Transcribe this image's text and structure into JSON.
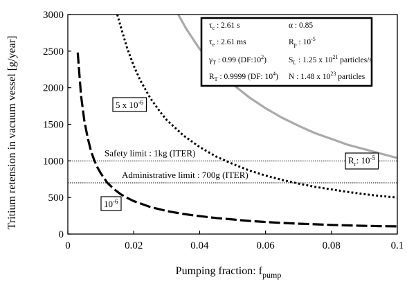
{
  "chart_data": {
    "type": "line",
    "xlabel": "Pumping fraction: f",
    "xlabel_sub": "pump",
    "ylabel": "Tritium retension in vacuum vessel [g/year]",
    "xlim": [
      0,
      0.1
    ],
    "ylim": [
      0,
      3000
    ],
    "x_ticks": [
      {
        "value": 0,
        "label": "0"
      },
      {
        "value": 0.02,
        "label": "0.02"
      },
      {
        "value": 0.04,
        "label": "0.04"
      },
      {
        "value": 0.06,
        "label": "0.06"
      },
      {
        "value": 0.08,
        "label": "0.08"
      },
      {
        "value": 0.1,
        "label": "0.1"
      }
    ],
    "y_ticks": [
      {
        "value": 0,
        "label": "0"
      },
      {
        "value": 500,
        "label": "500"
      },
      {
        "value": 1000,
        "label": "1000"
      },
      {
        "value": 1500,
        "label": "1500"
      },
      {
        "value": 2000,
        "label": "2000"
      },
      {
        "value": 2500,
        "label": "2500"
      },
      {
        "value": 3000,
        "label": "3000"
      }
    ],
    "series": [
      {
        "name": "10",
        "name_sup": "-6",
        "style": "long-dash",
        "color": "#000000",
        "points": [
          [
            0.003,
            2480
          ],
          [
            0.004,
            1900
          ],
          [
            0.005,
            1550
          ],
          [
            0.006,
            1320
          ],
          [
            0.007,
            1140
          ],
          [
            0.008,
            1010
          ],
          [
            0.009,
            910
          ],
          [
            0.01,
            830
          ],
          [
            0.012,
            700
          ],
          [
            0.014,
            615
          ],
          [
            0.016,
            545
          ],
          [
            0.018,
            495
          ],
          [
            0.02,
            450
          ],
          [
            0.025,
            370
          ],
          [
            0.03,
            315
          ],
          [
            0.035,
            275
          ],
          [
            0.04,
            245
          ],
          [
            0.045,
            220
          ],
          [
            0.05,
            200
          ],
          [
            0.055,
            180
          ],
          [
            0.06,
            165
          ],
          [
            0.065,
            152
          ],
          [
            0.07,
            142
          ],
          [
            0.075,
            133
          ],
          [
            0.08,
            125
          ],
          [
            0.085,
            118
          ],
          [
            0.09,
            113
          ],
          [
            0.095,
            108
          ],
          [
            0.1,
            105
          ]
        ]
      },
      {
        "name": "5 x 10",
        "name_sup": "-6",
        "style": "dotted",
        "color": "#000000",
        "points": [
          [
            0.015,
            3000
          ],
          [
            0.016,
            2840
          ],
          [
            0.018,
            2540
          ],
          [
            0.02,
            2300
          ],
          [
            0.022,
            2100
          ],
          [
            0.025,
            1860
          ],
          [
            0.028,
            1670
          ],
          [
            0.03,
            1560
          ],
          [
            0.035,
            1350
          ],
          [
            0.04,
            1190
          ],
          [
            0.045,
            1060
          ],
          [
            0.05,
            960
          ],
          [
            0.055,
            870
          ],
          [
            0.06,
            800
          ],
          [
            0.065,
            740
          ],
          [
            0.07,
            690
          ],
          [
            0.075,
            645
          ],
          [
            0.08,
            610
          ],
          [
            0.085,
            575
          ],
          [
            0.09,
            545
          ],
          [
            0.095,
            520
          ],
          [
            0.1,
            500
          ]
        ]
      },
      {
        "name": "R",
        "name_sub": "r",
        "name_suffix": ": 10",
        "name_sup": "-5",
        "style": "solid",
        "color": "#aaaaaa",
        "points": [
          [
            0.0335,
            3000
          ],
          [
            0.036,
            2800
          ],
          [
            0.04,
            2530
          ],
          [
            0.045,
            2260
          ],
          [
            0.05,
            2050
          ],
          [
            0.055,
            1870
          ],
          [
            0.06,
            1720
          ],
          [
            0.065,
            1590
          ],
          [
            0.07,
            1480
          ],
          [
            0.075,
            1380
          ],
          [
            0.08,
            1300
          ],
          [
            0.085,
            1220
          ],
          [
            0.09,
            1160
          ],
          [
            0.095,
            1100
          ],
          [
            0.1,
            1040
          ]
        ]
      }
    ],
    "reference_lines": [
      {
        "y": 1000,
        "label": "Safety limit : 1kg (ITER)"
      },
      {
        "y": 700,
        "label": "Administrative limit : 700g (ITER)"
      }
    ],
    "parameters": [
      {
        "sym": "τ",
        "sub": "c",
        "text": " : 2.61 s"
      },
      {
        "sym": "α",
        "sub": "",
        "text": " : 0.85"
      },
      {
        "sym": "τ",
        "sub": "e",
        "text": " : 2.61 ms"
      },
      {
        "sym": "R",
        "sub": "p",
        "text": " : 10",
        "sup": "-5"
      },
      {
        "sym": "γ",
        "sub": "T",
        "text": " : 0.99 (DF:10",
        "sup": "2",
        "tail": ")"
      },
      {
        "sym": "S",
        "sub": "L",
        "text": " : 1.25 x 10",
        "sup": "21",
        "tail": " particles/s"
      },
      {
        "sym": "R",
        "sub": "T",
        "text": " : 0.9999 (DF: 10",
        "sup": "4",
        "tail": ")"
      },
      {
        "sym": "N",
        "sub": "",
        "text": " : 1.48 x 10",
        "sup": "23",
        "tail": " particles"
      }
    ],
    "grid": false,
    "legend": "inline labels"
  }
}
